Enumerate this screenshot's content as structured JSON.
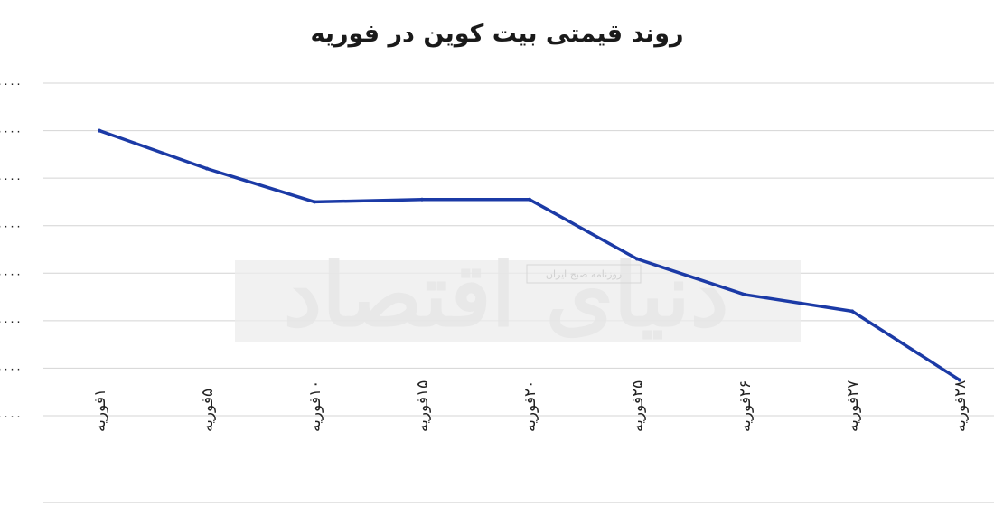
{
  "chart_data": {
    "type": "line",
    "title": "روند قیمتی بیت کوین در فوریه",
    "xlabel": "",
    "ylabel": "",
    "categories": [
      "۱فوریه",
      "۵فوریه",
      "۱۰فوریه",
      "۱۵فوریه",
      "۲۰فوریه",
      "۲۵فوریه",
      "۲۶فوریه",
      "۲۷فوریه",
      "۲۸فوریه"
    ],
    "y_tick_labels": [
      "۰۰۰۰",
      "۰۰۰۰",
      "۰۰۰۰",
      "۰۰۰۰",
      "۰۰۰۰",
      "۰۰۰۰",
      "۰۰۰۰",
      "۰۰۰۰"
    ],
    "ylim": [
      0,
      7
    ],
    "grid": true,
    "series": [
      {
        "color": "#1b3aa6",
        "values": [
          6.0,
          5.2,
          4.5,
          4.55,
          4.55,
          3.3,
          2.55,
          2.2,
          0.75
        ]
      }
    ]
  },
  "watermark": {
    "text": "دنیای اقتصاد",
    "subtext": "روزنامه صبح ایران"
  }
}
